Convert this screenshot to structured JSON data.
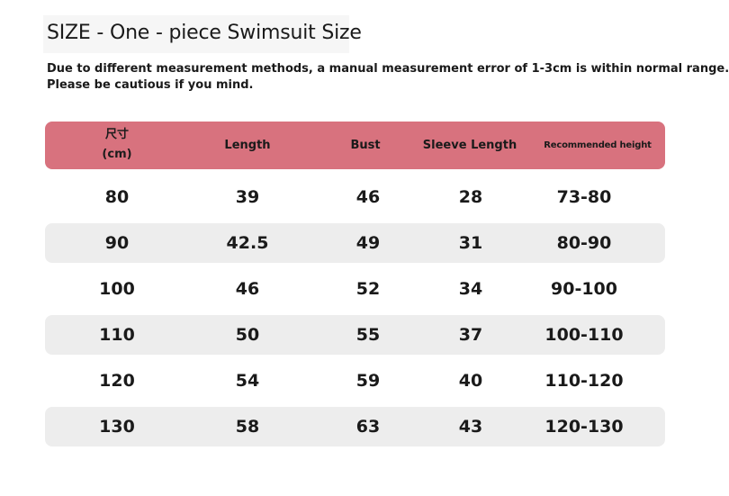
{
  "title": "SIZE - One - piece Swimsuit Size",
  "note": {
    "line1": "Due to different measurement methods, a manual measurement error of 1-3cm is within normal range.",
    "line2": "Please be cautious if you mind."
  },
  "colors": {
    "header_bg": "#d8727e",
    "row_shade": "#ededed"
  },
  "table": {
    "headers": {
      "size_line1": "尺寸",
      "size_line2": "(cm)",
      "length": "Length",
      "bust": "Bust",
      "sleeve": "Sleeve Length",
      "height": "Recommended height"
    },
    "rows": [
      {
        "size": "80",
        "length": "39",
        "bust": "46",
        "sleeve": "28",
        "height": "73-80"
      },
      {
        "size": "90",
        "length": "42.5",
        "bust": "49",
        "sleeve": "31",
        "height": "80-90"
      },
      {
        "size": "100",
        "length": "46",
        "bust": "52",
        "sleeve": "34",
        "height": "90-100"
      },
      {
        "size": "110",
        "length": "50",
        "bust": "55",
        "sleeve": "37",
        "height": "100-110"
      },
      {
        "size": "120",
        "length": "54",
        "bust": "59",
        "sleeve": "40",
        "height": "110-120"
      },
      {
        "size": "130",
        "length": "58",
        "bust": "63",
        "sleeve": "43",
        "height": "120-130"
      }
    ]
  }
}
